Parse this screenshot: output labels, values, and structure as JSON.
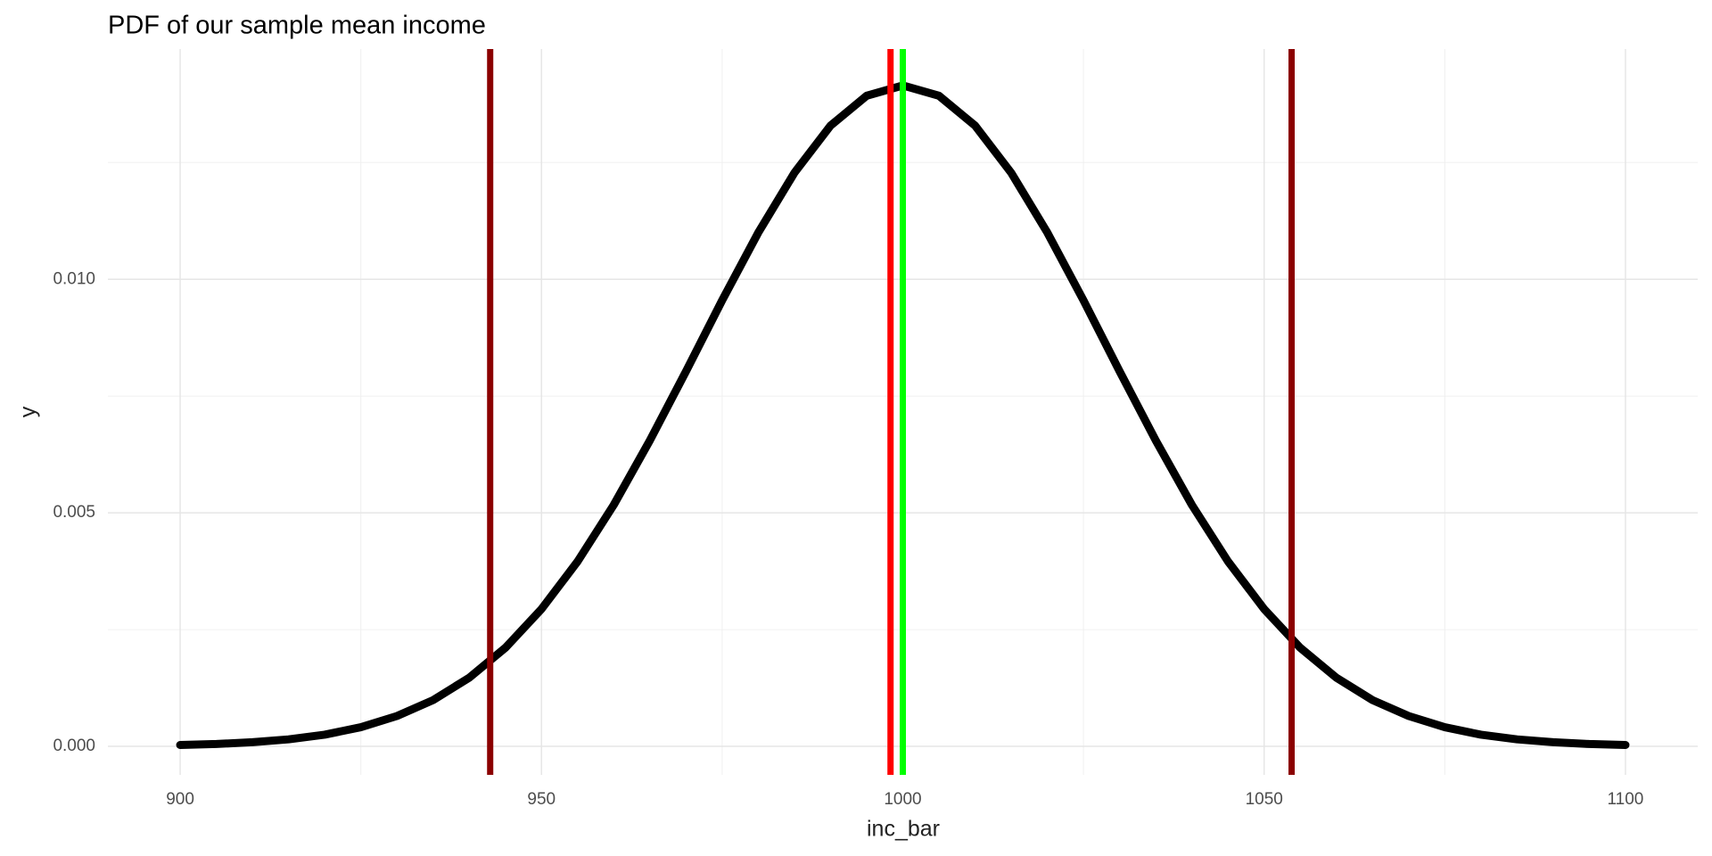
{
  "chart_data": {
    "type": "line",
    "title": "PDF of our sample mean income",
    "x_label": "inc_bar",
    "y_label": "y",
    "x": [
      900,
      905,
      910,
      915,
      920,
      925,
      930,
      935,
      940,
      945,
      950,
      955,
      960,
      965,
      970,
      975,
      980,
      985,
      990,
      995,
      1000,
      1005,
      1010,
      1015,
      1020,
      1025,
      1030,
      1035,
      1040,
      1045,
      1050,
      1055,
      1060,
      1065,
      1070,
      1075,
      1080,
      1085,
      1090,
      1095,
      1100
    ],
    "values": [
      3e-05,
      5e-05,
      9e-05,
      0.00015,
      0.00025,
      0.00041,
      0.00065,
      0.00099,
      0.00147,
      0.00211,
      0.00294,
      0.00396,
      0.00517,
      0.00655,
      0.00803,
      0.00955,
      0.011,
      0.01228,
      0.01329,
      0.01393,
      0.01415,
      0.01393,
      0.01329,
      0.01228,
      0.011,
      0.00955,
      0.00803,
      0.00655,
      0.00517,
      0.00396,
      0.00294,
      0.00211,
      0.00147,
      0.00099,
      0.00065,
      0.00041,
      0.00025,
      0.00015,
      9e-05,
      5e-05,
      3e-05
    ],
    "color": "#000000",
    "vlines": [
      {
        "x": 942.9,
        "color": "#8b0000"
      },
      {
        "x": 998.3,
        "color": "#ff0000"
      },
      {
        "x": 1000,
        "color": "#00ff00"
      },
      {
        "x": 1053.8,
        "color": "#8b0000"
      }
    ],
    "xlim": [
      890,
      1110
    ],
    "ylim": [
      -0.00061,
      0.01493
    ],
    "xticks": [
      900,
      950,
      1000,
      1050,
      1100
    ],
    "yticks": [
      {
        "value": 0,
        "label": "0.000"
      },
      {
        "value": 0.005,
        "label": "0.005"
      },
      {
        "value": 0.01,
        "label": "0.010"
      }
    ],
    "x_minor_grid": [
      925,
      975,
      1025,
      1075
    ],
    "y_minor_grid": [
      0.0025,
      0.0075,
      0.0125
    ],
    "grid": true
  }
}
